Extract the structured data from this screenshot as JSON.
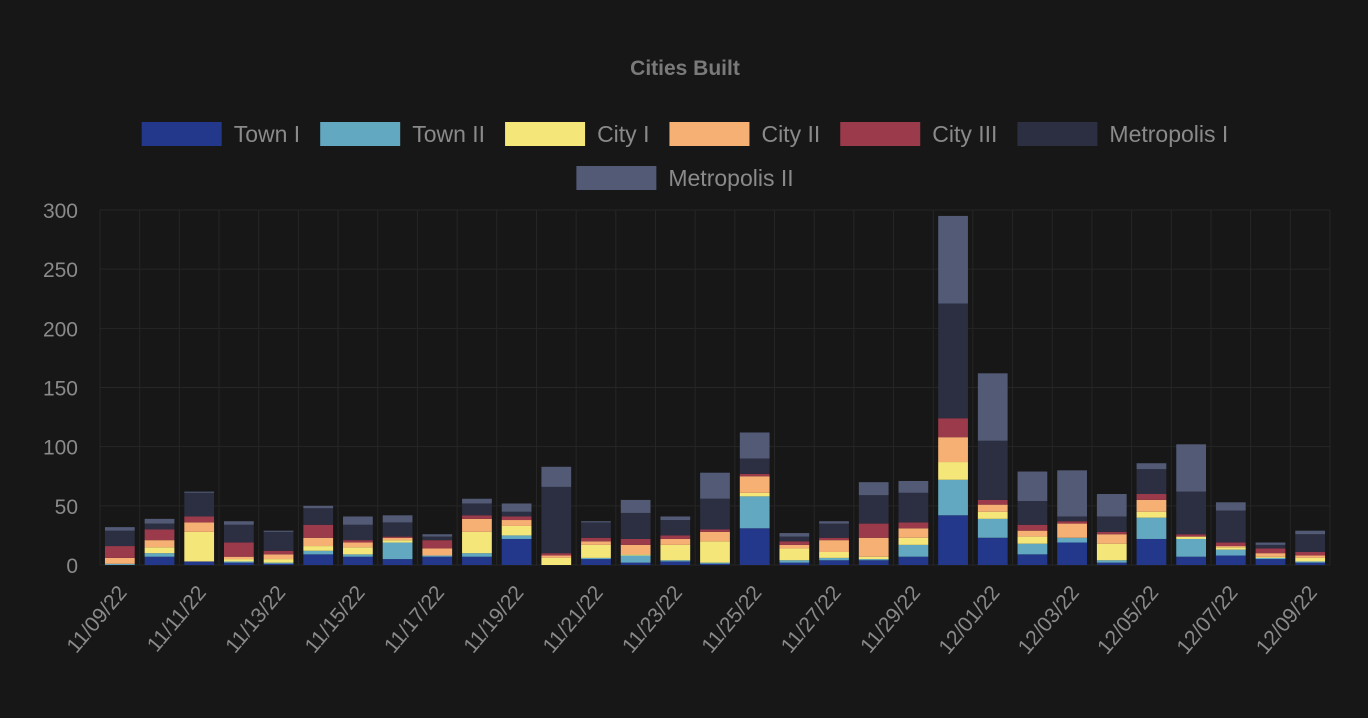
{
  "chart_data": {
    "type": "bar",
    "stacked": true,
    "title": "Cities Built",
    "xlabel": "",
    "ylabel": "",
    "ylim": [
      0,
      300
    ],
    "yticks": [
      0,
      50,
      100,
      150,
      200,
      250,
      300
    ],
    "grid": true,
    "legend_position": "top",
    "x_tick_labels": [
      "11/09/22",
      "11/11/22",
      "11/13/22",
      "11/15/22",
      "11/17/22",
      "11/19/22",
      "11/21/22",
      "11/23/22",
      "11/25/22",
      "11/27/22",
      "11/29/22",
      "12/01/22",
      "12/03/22",
      "12/05/22",
      "12/07/22",
      "12/09/22"
    ],
    "categories": [
      "11/09/22",
      "11/10/22",
      "11/11/22",
      "11/12/22",
      "11/13/22",
      "11/14/22",
      "11/15/22",
      "11/16/22",
      "11/17/22",
      "11/18/22",
      "11/19/22",
      "11/20/22",
      "11/21/22",
      "11/22/22",
      "11/23/22",
      "11/24/22",
      "11/25/22",
      "11/26/22",
      "11/27/22",
      "11/28/22",
      "11/29/22",
      "11/30/22",
      "12/01/22",
      "12/02/22",
      "12/03/22",
      "12/04/22",
      "12/05/22",
      "12/06/22",
      "12/07/22",
      "12/08/22",
      "12/09/22"
    ],
    "series": [
      {
        "name": "Town I",
        "color": "#23388a",
        "values": [
          0,
          7,
          3,
          2,
          1,
          9,
          7,
          5,
          7,
          7,
          22,
          0,
          5,
          2,
          3,
          1,
          31,
          2,
          4,
          4,
          7,
          42,
          23,
          9,
          19,
          2,
          22,
          7,
          8,
          5,
          2
        ]
      },
      {
        "name": "Town II",
        "color": "#62a8c1",
        "values": [
          1,
          3,
          0,
          1,
          1,
          3,
          2,
          14,
          1,
          3,
          3,
          0,
          1,
          6,
          1,
          1,
          27,
          2,
          2,
          1,
          10,
          30,
          16,
          9,
          4,
          2,
          18,
          15,
          5,
          1,
          1
        ]
      },
      {
        "name": "City I",
        "color": "#f5e67a",
        "values": [
          0,
          5,
          25,
          2,
          3,
          4,
          6,
          2,
          0,
          18,
          8,
          6,
          11,
          1,
          13,
          18,
          3,
          10,
          5,
          2,
          6,
          15,
          6,
          6,
          0,
          14,
          5,
          2,
          2,
          1,
          3
        ]
      },
      {
        "name": "City II",
        "color": "#f7b074",
        "values": [
          5,
          6,
          8,
          2,
          4,
          7,
          4,
          2,
          6,
          11,
          5,
          2,
          3,
          8,
          5,
          8,
          14,
          3,
          10,
          16,
          8,
          21,
          6,
          5,
          12,
          8,
          10,
          0,
          1,
          3,
          2
        ]
      },
      {
        "name": "City III",
        "color": "#9b3a4a",
        "values": [
          10,
          9,
          5,
          12,
          3,
          11,
          2,
          1,
          7,
          3,
          3,
          2,
          3,
          5,
          3,
          2,
          2,
          3,
          2,
          12,
          5,
          16,
          4,
          5,
          2,
          2,
          5,
          2,
          3,
          4,
          3
        ]
      },
      {
        "name": "Metropolis I",
        "color": "#2c2f41",
        "values": [
          13,
          5,
          20,
          15,
          16,
          14,
          13,
          12,
          3,
          10,
          4,
          56,
          13,
          22,
          13,
          26,
          13,
          4,
          12,
          24,
          25,
          97,
          50,
          20,
          4,
          13,
          21,
          36,
          27,
          3,
          15
        ]
      },
      {
        "name": "Metropolis II",
        "color": "#525a75",
        "values": [
          3,
          4,
          1,
          3,
          1,
          2,
          7,
          6,
          2,
          4,
          7,
          17,
          1,
          11,
          3,
          22,
          22,
          3,
          2,
          11,
          10,
          74,
          57,
          25,
          39,
          19,
          5,
          40,
          7,
          2,
          3
        ]
      }
    ]
  }
}
